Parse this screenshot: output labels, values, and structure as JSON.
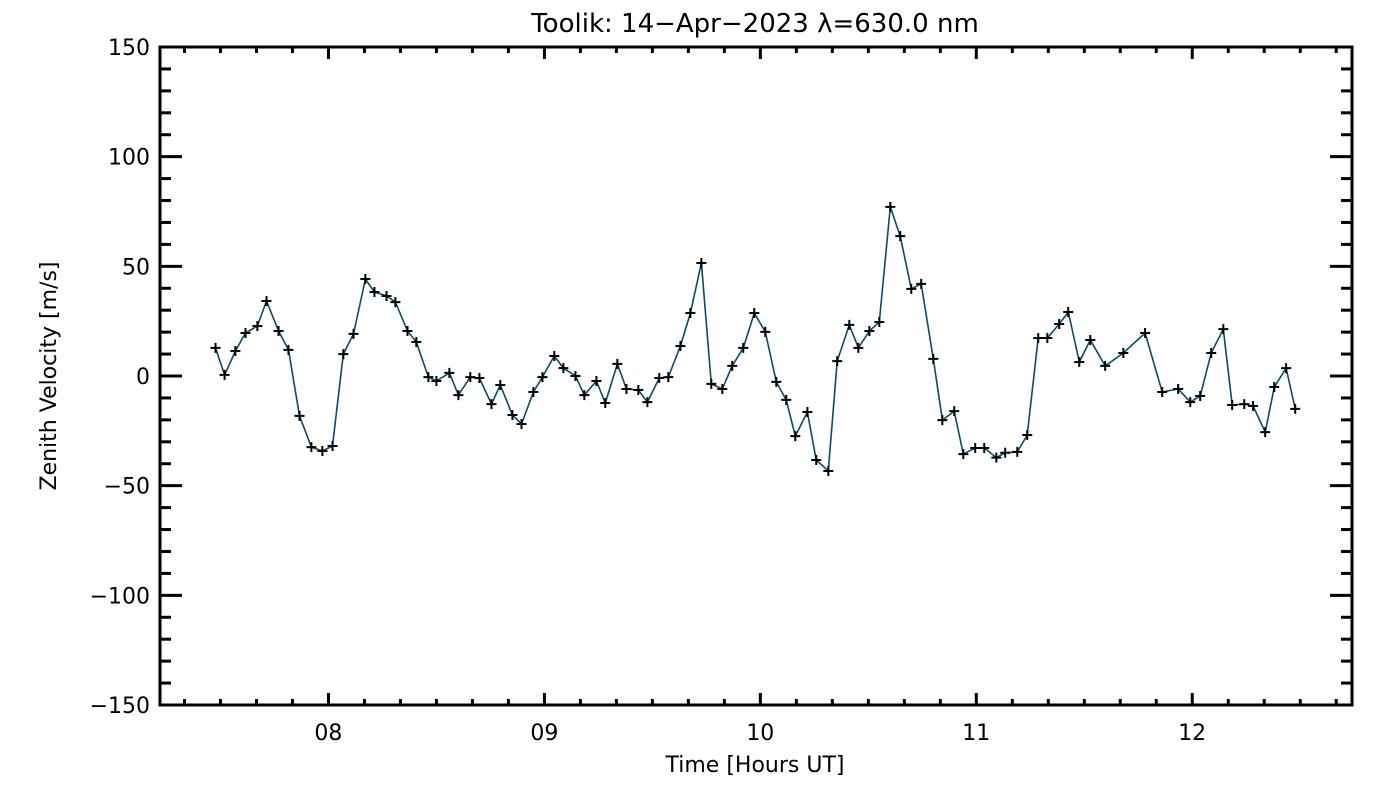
{
  "chart_data": {
    "type": "line",
    "title": "Toolik: 14−Apr−2023 λ=630.0 nm",
    "xlabel": "Time [Hours UT]",
    "ylabel": "Zenith Velocity [m/s]",
    "xlim": [
      7.22,
      12.74
    ],
    "ylim": [
      -150,
      150
    ],
    "xticks": [
      8,
      9,
      10,
      11,
      12
    ],
    "xtick_labels": [
      "08",
      "09",
      "10",
      "11",
      "12"
    ],
    "yticks": [
      -150,
      -100,
      -50,
      0,
      50,
      100,
      150
    ],
    "ytick_labels": [
      "−150",
      "−100",
      "−50",
      "0",
      "50",
      "100",
      "150"
    ],
    "x_minor_step": 0.16667,
    "y_minor_step": 10,
    "grid": false,
    "line_color": "#0b4a6b",
    "marker": "plus",
    "series": [
      {
        "name": "zenith velocity",
        "x": [
          7.477,
          7.519,
          7.569,
          7.616,
          7.671,
          7.713,
          7.769,
          7.815,
          7.866,
          7.921,
          7.972,
          8.019,
          8.069,
          8.116,
          8.171,
          8.213,
          8.269,
          8.31,
          8.366,
          8.407,
          8.463,
          8.5,
          8.56,
          8.602,
          8.657,
          8.699,
          8.755,
          8.796,
          8.852,
          8.894,
          8.949,
          8.991,
          9.046,
          9.088,
          9.144,
          9.185,
          9.241,
          9.282,
          9.338,
          9.38,
          9.435,
          9.477,
          9.532,
          9.574,
          9.63,
          9.676,
          9.727,
          9.773,
          9.824,
          9.87,
          9.921,
          9.972,
          10.023,
          10.074,
          10.12,
          10.162,
          10.218,
          10.259,
          10.315,
          10.356,
          10.412,
          10.454,
          10.505,
          10.551,
          10.602,
          10.648,
          10.699,
          10.745,
          10.801,
          10.843,
          10.898,
          10.94,
          10.995,
          11.037,
          11.093,
          11.134,
          11.19,
          11.236,
          11.287,
          11.329,
          11.384,
          11.426,
          11.477,
          11.528,
          11.597,
          11.681,
          11.782,
          11.861,
          11.935,
          11.991,
          12.037,
          12.088,
          12.144,
          12.185,
          12.241,
          12.282,
          12.338,
          12.38,
          12.435,
          12.477
        ],
        "y": [
          12.8,
          0.5,
          11.4,
          19.6,
          22.8,
          34.2,
          20.5,
          11.9,
          -18.2,
          -32.4,
          -34.2,
          -31.9,
          10.0,
          19.2,
          44.2,
          38.3,
          36.5,
          33.7,
          20.5,
          15.5,
          -0.5,
          -2.3,
          1.4,
          -8.7,
          -0.5,
          -0.9,
          -12.8,
          -4.1,
          -17.8,
          -21.9,
          -7.3,
          -0.5,
          9.1,
          3.6,
          0.0,
          -8.7,
          -2.3,
          -12.3,
          5.5,
          -5.9,
          -6.4,
          -11.9,
          -0.9,
          -0.5,
          13.7,
          28.7,
          51.5,
          -3.6,
          -5.9,
          4.6,
          12.8,
          28.7,
          20.1,
          -2.7,
          -10.9,
          -27.4,
          -16.4,
          -38.3,
          -43.3,
          6.8,
          23.3,
          12.8,
          20.5,
          24.6,
          77.1,
          63.8,
          39.7,
          42.0,
          7.8,
          -20.1,
          -16.0,
          -35.6,
          -32.8,
          -32.8,
          -37.2,
          -35.0,
          -34.6,
          -26.9,
          17.3,
          17.3,
          23.7,
          29.2,
          6.4,
          16.4,
          4.6,
          10.5,
          19.6,
          -7.3,
          -5.9,
          -11.9,
          -9.1,
          10.5,
          21.4,
          -13.2,
          -12.8,
          -13.7,
          -25.6,
          -5.0,
          3.6,
          -15.0
        ]
      }
    ]
  }
}
